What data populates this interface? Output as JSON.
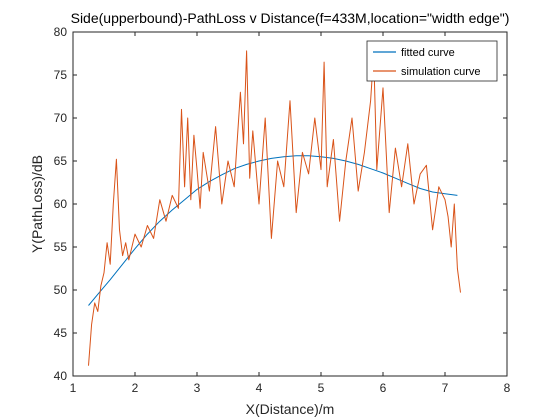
{
  "chart_data": {
    "type": "line",
    "title": "Side(upperbound)-PathLoss v Distance(f=433M,location=\"width edge\")",
    "xlabel": "X(Distance)/m",
    "ylabel": "Y(PathLoss)/dB",
    "xlim": [
      1,
      8
    ],
    "ylim": [
      40,
      80
    ],
    "xticks": [
      1,
      2,
      3,
      4,
      5,
      6,
      7,
      8
    ],
    "yticks": [
      40,
      45,
      50,
      55,
      60,
      65,
      70,
      75,
      80
    ],
    "grid": false,
    "legend_position": "top-right",
    "series": [
      {
        "name": "fitted curve",
        "color": "#0072BD",
        "x": [
          1.25,
          1.4,
          1.6,
          1.8,
          2.0,
          2.2,
          2.4,
          2.6,
          2.8,
          3.0,
          3.2,
          3.4,
          3.6,
          3.8,
          4.0,
          4.2,
          4.4,
          4.6,
          4.8,
          5.0,
          5.2,
          5.4,
          5.6,
          5.8,
          6.0,
          6.2,
          6.4,
          6.6,
          6.8,
          7.0,
          7.2
        ],
        "y": [
          48.2,
          49.5,
          51.2,
          53.0,
          54.8,
          56.5,
          58.0,
          59.3,
          60.5,
          61.7,
          62.6,
          63.4,
          64.1,
          64.6,
          65.0,
          65.3,
          65.5,
          65.6,
          65.6,
          65.5,
          65.3,
          65.0,
          64.6,
          64.1,
          63.6,
          63.0,
          62.4,
          61.8,
          61.4,
          61.2,
          61.0
        ]
      },
      {
        "name": "simulation curve",
        "color": "#D95319",
        "x": [
          1.25,
          1.3,
          1.35,
          1.4,
          1.45,
          1.5,
          1.55,
          1.6,
          1.65,
          1.7,
          1.75,
          1.8,
          1.85,
          1.9,
          2.0,
          2.1,
          2.2,
          2.3,
          2.4,
          2.5,
          2.6,
          2.7,
          2.75,
          2.8,
          2.85,
          2.9,
          2.95,
          3.0,
          3.05,
          3.1,
          3.2,
          3.3,
          3.4,
          3.5,
          3.6,
          3.7,
          3.75,
          3.8,
          3.85,
          3.9,
          4.0,
          4.1,
          4.2,
          4.3,
          4.4,
          4.5,
          4.6,
          4.7,
          4.8,
          4.9,
          5.0,
          5.05,
          5.1,
          5.2,
          5.3,
          5.4,
          5.5,
          5.6,
          5.7,
          5.8,
          5.85,
          5.9,
          6.0,
          6.1,
          6.2,
          6.3,
          6.4,
          6.5,
          6.6,
          6.7,
          6.8,
          6.9,
          7.0,
          7.05,
          7.1,
          7.15,
          7.2,
          7.25
        ],
        "y": [
          41.2,
          46.0,
          48.5,
          47.5,
          50.5,
          52.0,
          55.5,
          53.0,
          60.0,
          65.2,
          57.0,
          54.0,
          55.5,
          53.5,
          56.5,
          55.0,
          57.5,
          56.0,
          60.5,
          58.0,
          61.0,
          59.5,
          71.0,
          62.0,
          70.0,
          60.5,
          68.0,
          64.0,
          59.5,
          66.0,
          61.5,
          69.0,
          60.0,
          65.0,
          62.0,
          73.0,
          67.0,
          77.8,
          63.0,
          68.5,
          60.0,
          70.0,
          56.0,
          65.0,
          62.0,
          72.0,
          59.0,
          66.0,
          63.5,
          70.0,
          64.0,
          76.5,
          62.0,
          67.5,
          58.0,
          65.0,
          70.0,
          61.5,
          66.0,
          72.0,
          77.5,
          64.0,
          73.5,
          59.0,
          66.5,
          62.0,
          67.0,
          60.0,
          63.5,
          64.5,
          57.0,
          62.0,
          60.5,
          58.5,
          55.0,
          60.0,
          52.5,
          49.7
        ]
      }
    ]
  }
}
